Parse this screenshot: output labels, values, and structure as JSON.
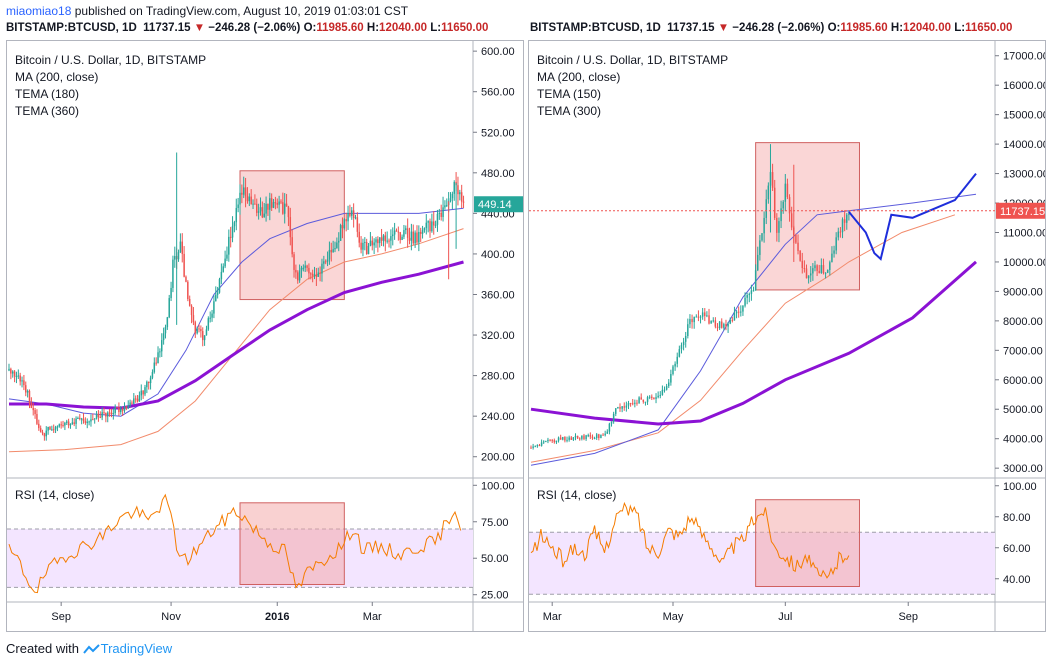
{
  "header": {
    "user": "miaomiao18",
    "published": "published on TradingView.com, August 10, 2019 01:03:01 CST",
    "left_quote": {
      "symbol": "BITSTAMP:BTCUSD, 1D",
      "price": "11737.15",
      "arrow": "▼",
      "change": "−246.28 (−2.06%)",
      "o_label": "O:",
      "o": "11985.60",
      "h_label": "H:",
      "h": "12040.00",
      "l_label": "L:",
      "l": "11650.00"
    },
    "right_quote": {
      "symbol": "BITSTAMP:BTCUSD, 1D",
      "price": "11737.15",
      "arrow": "▼",
      "change": "−246.28 (−2.06%)",
      "o_label": "O:",
      "o": "11985.60",
      "h_label": "H:",
      "h": "12040.00",
      "l_label": "L:",
      "l": "11650.00"
    }
  },
  "left_chart": {
    "legend": [
      "Bitcoin / U.S. Dollar, 1D, BITSTAMP",
      "MA (200, close)",
      "TEMA (180)",
      "TEMA (360)"
    ],
    "price_label": "449.14",
    "rsi_label": "RSI (14, close)"
  },
  "right_chart": {
    "legend": [
      "Bitcoin / U.S. Dollar, 1D, BITSTAMP",
      "MA (200, close)",
      "TEMA (150)",
      "TEMA (300)"
    ],
    "price_label": "11737.15",
    "rsi_label": "RSI (14, close)"
  },
  "footer": {
    "created": "Created with",
    "brand": "TradingView"
  },
  "colors": {
    "up": "#26a69a",
    "down": "#ef5350",
    "ma": "#5b5bdc",
    "tema_fast": "#f28b6c",
    "tema_slow": "#8b12d4",
    "rsi": "#f57c00",
    "box": "#f4a3a3",
    "rsi_band": "#f3e5ff",
    "projection": "#1e2edb",
    "price_tag_left": "#26a69a",
    "price_tag_right": "#ef5350"
  },
  "chart_data": [
    {
      "type": "candlestick",
      "title": "Bitcoin / U.S. Dollar, 1D, BITSTAMP",
      "y_ticks": [
        "600.00",
        "560.00",
        "520.00",
        "480.00",
        "440.00",
        "400.00",
        "360.00",
        "320.00",
        "280.00",
        "240.00",
        "200.00"
      ],
      "x_ticks": [
        "Sep",
        "Nov",
        "2016",
        "Mar"
      ],
      "ylim": [
        180,
        610
      ],
      "close_points": [
        [
          0,
          285
        ],
        [
          5,
          278
        ],
        [
          10,
          262
        ],
        [
          15,
          235
        ],
        [
          18,
          222
        ],
        [
          22,
          228
        ],
        [
          30,
          233
        ],
        [
          40,
          236
        ],
        [
          50,
          242
        ],
        [
          60,
          248
        ],
        [
          70,
          258
        ],
        [
          75,
          275
        ],
        [
          80,
          300
        ],
        [
          85,
          335
        ],
        [
          88,
          390
        ],
        [
          92,
          410
        ],
        [
          96,
          355
        ],
        [
          100,
          325
        ],
        [
          104,
          318
        ],
        [
          110,
          350
        ],
        [
          115,
          390
        ],
        [
          120,
          425
        ],
        [
          125,
          465
        ],
        [
          130,
          450
        ],
        [
          135,
          440
        ],
        [
          140,
          452
        ],
        [
          145,
          448
        ],
        [
          150,
          440
        ],
        [
          152,
          395
        ],
        [
          155,
          378
        ],
        [
          160,
          385
        ],
        [
          165,
          375
        ],
        [
          170,
          392
        ],
        [
          175,
          410
        ],
        [
          180,
          432
        ],
        [
          185,
          440
        ],
        [
          188,
          412
        ],
        [
          192,
          405
        ],
        [
          198,
          415
        ],
        [
          205,
          418
        ],
        [
          212,
          420
        ],
        [
          218,
          416
        ],
        [
          224,
          425
        ],
        [
          230,
          434
        ],
        [
          236,
          448
        ],
        [
          240,
          470
        ],
        [
          244,
          449
        ]
      ],
      "ma_200": [
        [
          0,
          257
        ],
        [
          20,
          252
        ],
        [
          40,
          243
        ],
        [
          60,
          240
        ],
        [
          80,
          262
        ],
        [
          95,
          305
        ],
        [
          110,
          360
        ],
        [
          125,
          392
        ],
        [
          140,
          415
        ],
        [
          160,
          430
        ],
        [
          180,
          440
        ],
        [
          200,
          440
        ],
        [
          220,
          440
        ],
        [
          244,
          445
        ]
      ],
      "tema_180": [
        [
          0,
          205
        ],
        [
          30,
          207
        ],
        [
          60,
          212
        ],
        [
          80,
          225
        ],
        [
          100,
          255
        ],
        [
          120,
          300
        ],
        [
          140,
          345
        ],
        [
          160,
          375
        ],
        [
          180,
          392
        ],
        [
          200,
          400
        ],
        [
          220,
          410
        ],
        [
          244,
          425
        ]
      ],
      "tema_360": [
        [
          0,
          252
        ],
        [
          20,
          252
        ],
        [
          40,
          249
        ],
        [
          60,
          248
        ],
        [
          80,
          255
        ],
        [
          100,
          275
        ],
        [
          120,
          300
        ],
        [
          140,
          325
        ],
        [
          160,
          345
        ],
        [
          180,
          362
        ],
        [
          200,
          372
        ],
        [
          220,
          380
        ],
        [
          244,
          392
        ]
      ],
      "rsi": {
        "y_ticks": [
          "100.00",
          "75.00",
          "50.00",
          "25.00"
        ],
        "ylim": [
          20,
          105
        ],
        "band": [
          30,
          70
        ],
        "points": [
          [
            0,
            55
          ],
          [
            5,
            48
          ],
          [
            10,
            35
          ],
          [
            15,
            28
          ],
          [
            20,
            40
          ],
          [
            30,
            52
          ],
          [
            40,
            58
          ],
          [
            50,
            65
          ],
          [
            60,
            78
          ],
          [
            68,
            82
          ],
          [
            75,
            75
          ],
          [
            80,
            85
          ],
          [
            85,
            90
          ],
          [
            90,
            58
          ],
          [
            95,
            48
          ],
          [
            100,
            55
          ],
          [
            110,
            70
          ],
          [
            115,
            75
          ],
          [
            120,
            82
          ],
          [
            125,
            80
          ],
          [
            130,
            72
          ],
          [
            140,
            60
          ],
          [
            148,
            55
          ],
          [
            152,
            38
          ],
          [
            155,
            28
          ],
          [
            160,
            40
          ],
          [
            170,
            50
          ],
          [
            180,
            60
          ],
          [
            185,
            72
          ],
          [
            190,
            55
          ],
          [
            200,
            58
          ],
          [
            210,
            52
          ],
          [
            220,
            58
          ],
          [
            230,
            62
          ],
          [
            236,
            78
          ],
          [
            240,
            85
          ],
          [
            244,
            60
          ]
        ]
      }
    },
    {
      "type": "candlestick",
      "title": "Bitcoin / U.S. Dollar, 1D, BITSTAMP",
      "y_ticks": [
        "17000.00",
        "16000.00",
        "15000.00",
        "14000.00",
        "13000.00",
        "12000.00",
        "11000.00",
        "10000.00",
        "9000.00",
        "8000.00",
        "7000.00",
        "6000.00",
        "5000.00",
        "4000.00",
        "3000.00"
      ],
      "x_ticks": [
        "Mar",
        "May",
        "Jul",
        "Sep"
      ],
      "ylim": [
        2700,
        17500
      ],
      "close_points": [
        [
          0,
          3700
        ],
        [
          8,
          3900
        ],
        [
          15,
          4000
        ],
        [
          25,
          4050
        ],
        [
          35,
          4100
        ],
        [
          40,
          5000
        ],
        [
          50,
          5300
        ],
        [
          60,
          5400
        ],
        [
          65,
          6000
        ],
        [
          70,
          7000
        ],
        [
          75,
          8000
        ],
        [
          80,
          8200
        ],
        [
          90,
          7800
        ],
        [
          100,
          8500
        ],
        [
          105,
          9200
        ],
        [
          110,
          11500
        ],
        [
          113,
          13000
        ],
        [
          116,
          11000
        ],
        [
          120,
          12500
        ],
        [
          125,
          10500
        ],
        [
          130,
          9500
        ],
        [
          135,
          9800
        ],
        [
          140,
          9700
        ],
        [
          145,
          11000
        ],
        [
          150,
          11737
        ]
      ],
      "ma_200": [
        [
          0,
          3100
        ],
        [
          30,
          3500
        ],
        [
          60,
          4300
        ],
        [
          80,
          6300
        ],
        [
          100,
          8800
        ],
        [
          120,
          10600
        ],
        [
          135,
          11600
        ],
        [
          150,
          11737
        ],
        [
          180,
          12000
        ],
        [
          210,
          12300
        ]
      ],
      "tema_150": [
        [
          0,
          3200
        ],
        [
          30,
          3600
        ],
        [
          60,
          4200
        ],
        [
          80,
          5300
        ],
        [
          100,
          7000
        ],
        [
          120,
          8600
        ],
        [
          140,
          9500
        ],
        [
          150,
          10000
        ],
        [
          175,
          11000
        ],
        [
          200,
          11600
        ]
      ],
      "tema_300": [
        [
          0,
          5000
        ],
        [
          30,
          4700
        ],
        [
          60,
          4500
        ],
        [
          80,
          4600
        ],
        [
          100,
          5200
        ],
        [
          120,
          6000
        ],
        [
          140,
          6600
        ],
        [
          150,
          6900
        ],
        [
          180,
          8100
        ],
        [
          210,
          10000
        ]
      ],
      "projection": [
        [
          150,
          11700
        ],
        [
          158,
          11000
        ],
        [
          162,
          10300
        ],
        [
          165,
          10100
        ],
        [
          170,
          11600
        ],
        [
          180,
          11500
        ],
        [
          190,
          11800
        ],
        [
          200,
          12100
        ],
        [
          210,
          13000
        ]
      ],
      "rsi": {
        "y_ticks": [
          "100.00",
          "80.00",
          "60.00",
          "40.00"
        ],
        "ylim": [
          25,
          105
        ],
        "band": [
          30,
          70
        ],
        "points": [
          [
            0,
            55
          ],
          [
            5,
            68
          ],
          [
            10,
            60
          ],
          [
            15,
            52
          ],
          [
            20,
            60
          ],
          [
            25,
            55
          ],
          [
            30,
            70
          ],
          [
            35,
            58
          ],
          [
            40,
            80
          ],
          [
            45,
            85
          ],
          [
            50,
            82
          ],
          [
            55,
            60
          ],
          [
            60,
            58
          ],
          [
            65,
            72
          ],
          [
            70,
            68
          ],
          [
            75,
            80
          ],
          [
            80,
            70
          ],
          [
            85,
            62
          ],
          [
            90,
            50
          ],
          [
            95,
            60
          ],
          [
            100,
            65
          ],
          [
            105,
            78
          ],
          [
            110,
            85
          ],
          [
            115,
            60
          ],
          [
            120,
            55
          ],
          [
            125,
            48
          ],
          [
            130,
            55
          ],
          [
            135,
            42
          ],
          [
            140,
            40
          ],
          [
            145,
            52
          ],
          [
            150,
            58
          ]
        ]
      }
    }
  ]
}
